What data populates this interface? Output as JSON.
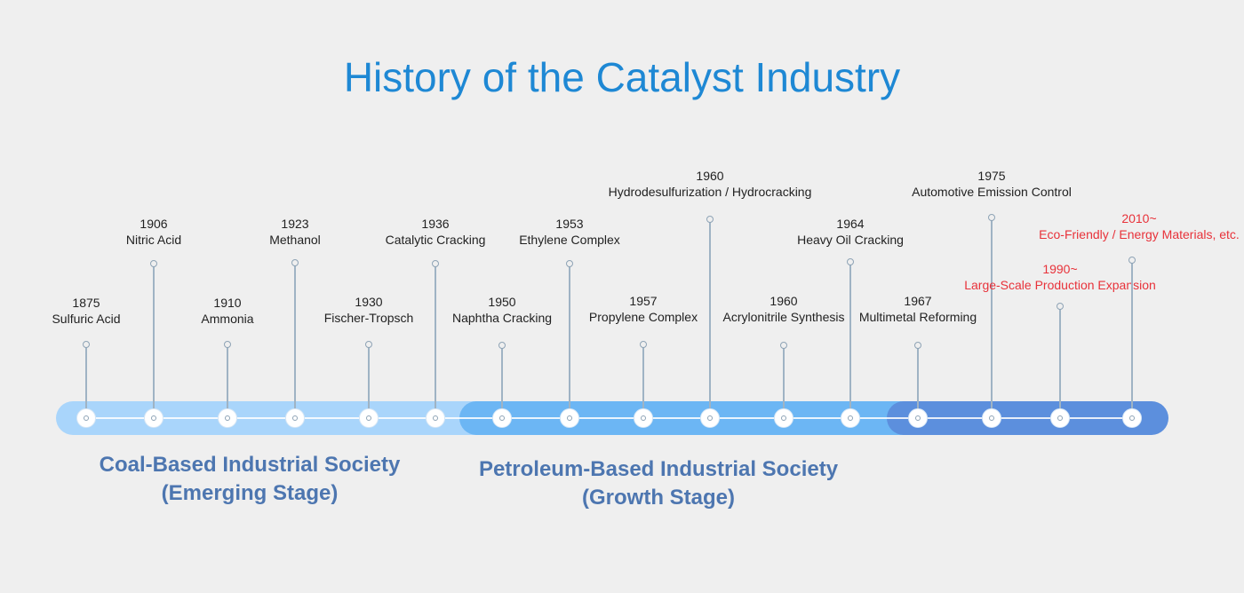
{
  "title": "History of the Catalyst Industry",
  "stages": [
    {
      "line1": "Coal-Based Industrial Society",
      "line2": "(Emerging Stage)",
      "color": "#a9d5fb"
    },
    {
      "line1": "Petroleum-Based Industrial Society",
      "line2": "(Growth Stage)",
      "color": "#6cb6f4"
    },
    {
      "line1": "",
      "line2": "",
      "color": "#5c8fdd"
    }
  ],
  "events": [
    {
      "year": "1875",
      "name": "Sulfuric Acid",
      "highlight": false
    },
    {
      "year": "1906",
      "name": "Nitric Acid",
      "highlight": false
    },
    {
      "year": "1910",
      "name": "Ammonia",
      "highlight": false
    },
    {
      "year": "1923",
      "name": "Methanol",
      "highlight": false
    },
    {
      "year": "1930",
      "name": "Fischer-Tropsch",
      "highlight": false
    },
    {
      "year": "1936",
      "name": "Catalytic Cracking",
      "highlight": false
    },
    {
      "year": "1950",
      "name": "Naphtha Cracking",
      "highlight": false
    },
    {
      "year": "1953",
      "name": "Ethylene Complex",
      "highlight": false
    },
    {
      "year": "1957",
      "name": "Propylene Complex",
      "highlight": false
    },
    {
      "year": "1960",
      "name": "Hydrodesulfurization / Hydrocracking",
      "highlight": false
    },
    {
      "year": "1960",
      "name": "Acrylonitrile Synthesis",
      "highlight": false
    },
    {
      "year": "1964",
      "name": "Heavy Oil Cracking",
      "highlight": false
    },
    {
      "year": "1967",
      "name": "Multimetal Reforming",
      "highlight": false
    },
    {
      "year": "1975",
      "name": "Automotive Emission Control",
      "highlight": false
    },
    {
      "year": "1990~",
      "name": "Large-Scale Production Expansion",
      "highlight": true
    },
    {
      "year": "2010~",
      "name": "Eco-Friendly / Energy Materials, etc.",
      "highlight": true
    }
  ]
}
